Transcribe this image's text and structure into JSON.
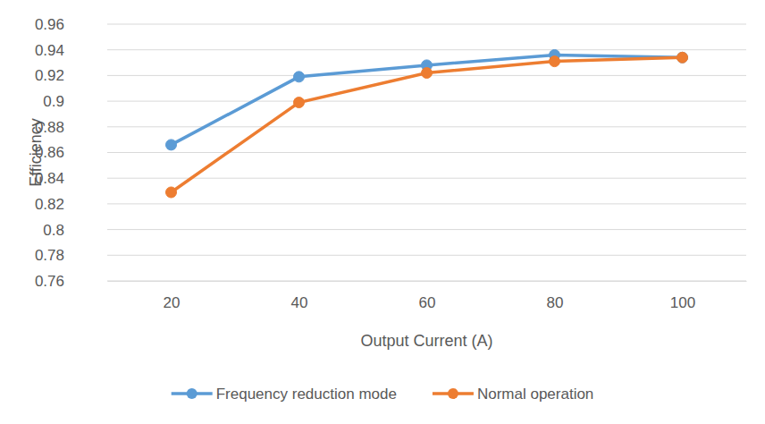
{
  "chart_data": {
    "type": "line",
    "x_label": "Output Current (A)",
    "y_label": "Efficiency",
    "categories": [
      "20",
      "40",
      "60",
      "80",
      "100"
    ],
    "series": [
      {
        "name": "Frequency reduction mode",
        "color": "#5b9bd5",
        "marker": "circle",
        "line_style": "solid",
        "values": [
          0.866,
          0.919,
          0.928,
          0.936,
          0.934
        ]
      },
      {
        "name": "Normal operation",
        "color": "#ed7d31",
        "marker": "circle",
        "line_style": "solid",
        "values": [
          0.829,
          0.899,
          0.922,
          0.931,
          0.934
        ]
      }
    ],
    "ylim": [
      0.76,
      0.96
    ],
    "yticks": [
      0.76,
      0.78,
      0.8,
      0.82,
      0.84,
      0.86,
      0.88,
      0.9,
      0.92,
      0.94,
      0.96
    ],
    "grid": true,
    "legend": "bottom"
  }
}
